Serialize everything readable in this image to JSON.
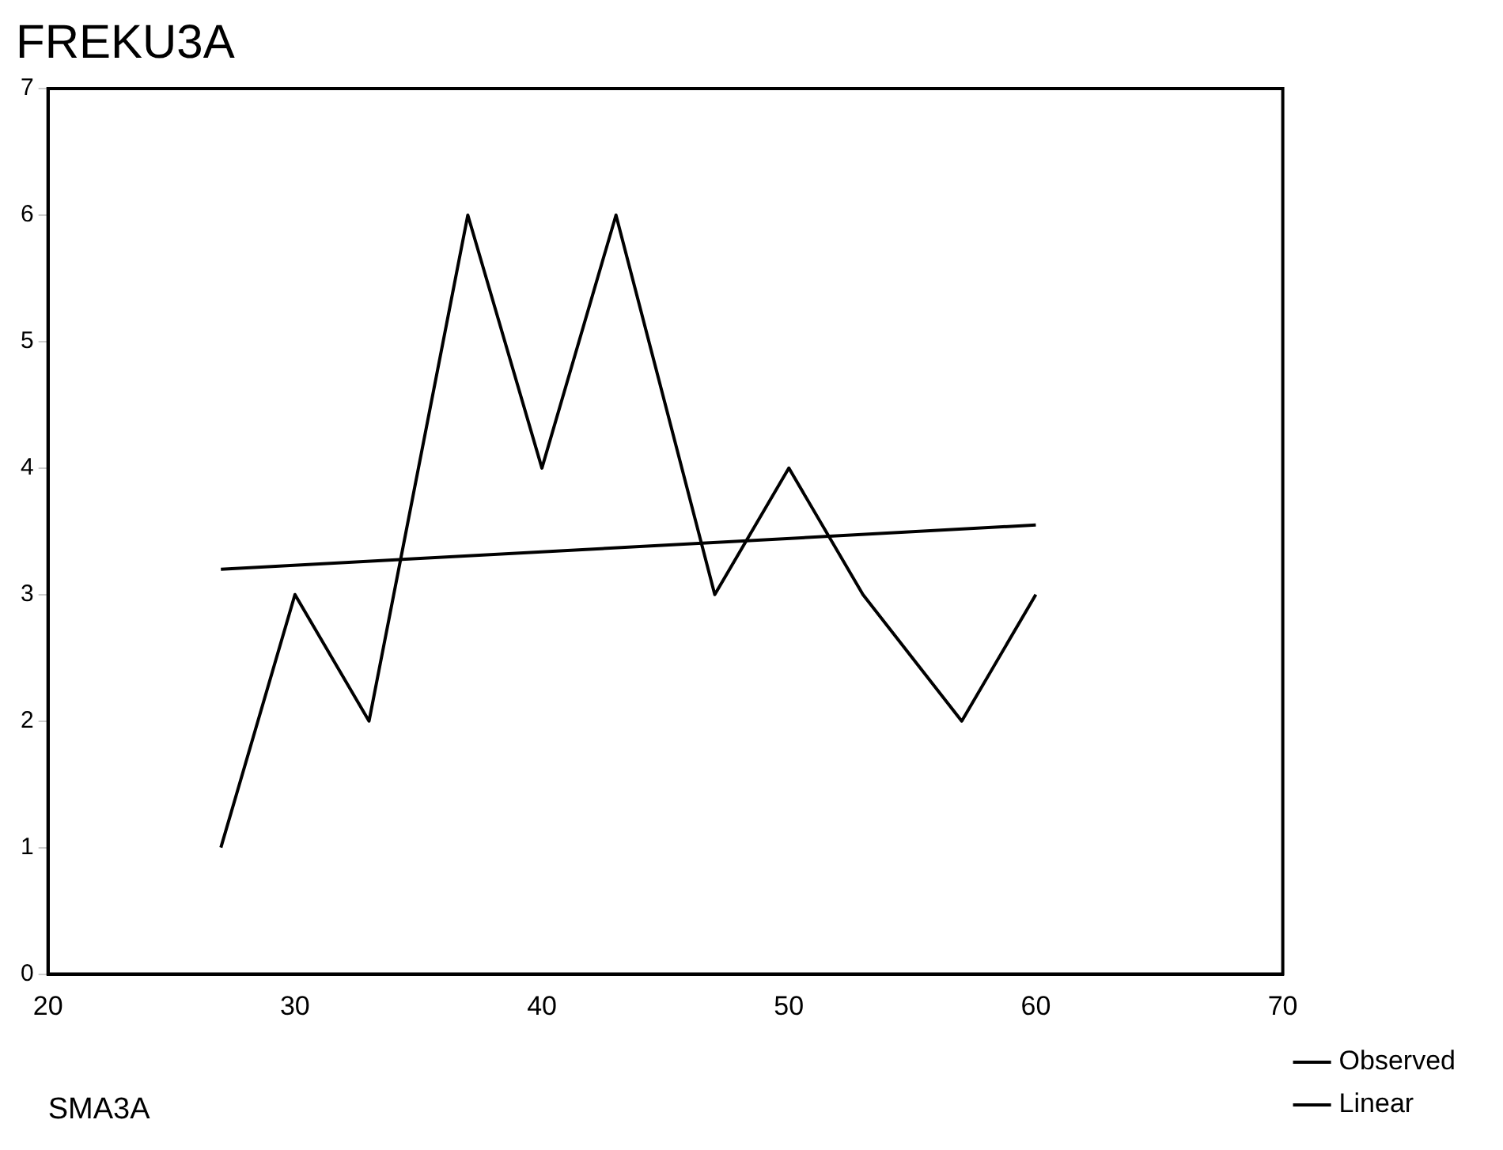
{
  "chart_data": {
    "type": "line",
    "title": "FREKU3A",
    "xlabel": "SMA3A",
    "series": [
      {
        "name": "Observed",
        "color": "#000000",
        "x": [
          27,
          30,
          33,
          37,
          40,
          43,
          47,
          50,
          53,
          57,
          60
        ],
        "values": [
          1,
          3,
          2,
          6,
          4,
          6,
          3,
          4,
          3,
          2,
          3
        ]
      },
      {
        "name": "Linear",
        "color": "#000000",
        "x": [
          27,
          60
        ],
        "values": [
          3.2,
          3.55
        ]
      }
    ],
    "xlim": [
      20,
      70
    ],
    "xticks": [
      20,
      30,
      40,
      50,
      60,
      70
    ],
    "ylim": [
      0,
      7
    ],
    "yticks": [
      0,
      1,
      2,
      3,
      4,
      5,
      6,
      7
    ],
    "grid": false,
    "legend": "right",
    "marker": "none",
    "line_style": "solid"
  }
}
